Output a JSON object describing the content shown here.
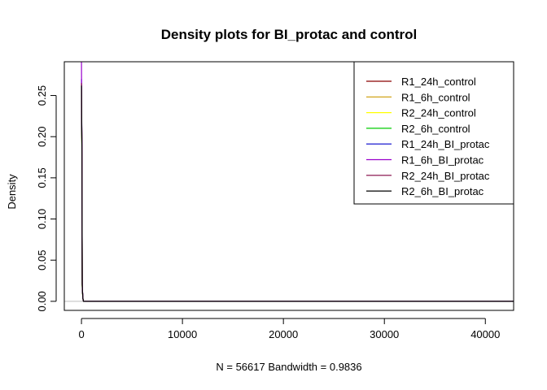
{
  "chart_data": {
    "type": "line",
    "title": "Density plots for BI_protac and control",
    "xlabel": "N = 56617   Bandwidth = 0.9836",
    "ylabel": "Density",
    "xlim": [
      -1700,
      42800
    ],
    "ylim": [
      -0.011,
      0.291
    ],
    "xticks": [
      0,
      10000,
      20000,
      30000,
      40000
    ],
    "yticks": [
      0.0,
      0.05,
      0.1,
      0.15,
      0.2,
      0.25
    ],
    "xtick_labels": [
      "0",
      "10000",
      "20000",
      "30000",
      "40000"
    ],
    "ytick_labels": [
      "0.00",
      "0.05",
      "0.10",
      "0.15",
      "0.20",
      "0.25"
    ],
    "zero_reference_line": true,
    "grid": false,
    "legend_position": "top-right",
    "series": [
      {
        "name": "R1_24h_control",
        "color": "#8B0000",
        "x": [
          0,
          25,
          50,
          75,
          100,
          150,
          200,
          42800
        ],
        "y": [
          0.26,
          0.215,
          0.18,
          0.02,
          0.012,
          0.003,
          0.0,
          0.0
        ]
      },
      {
        "name": "R1_6h_control",
        "color": "#CC9900",
        "x": [
          0,
          25,
          50,
          75,
          100,
          150,
          200,
          42800
        ],
        "y": [
          0.25,
          0.21,
          0.175,
          0.018,
          0.011,
          0.003,
          0.0,
          0.0
        ]
      },
      {
        "name": "R2_24h_control",
        "color": "#FFFF00",
        "x": [
          0,
          25,
          50,
          75,
          100,
          150,
          200,
          42800
        ],
        "y": [
          0.255,
          0.212,
          0.178,
          0.019,
          0.011,
          0.003,
          0.0,
          0.0
        ]
      },
      {
        "name": "R2_6h_control",
        "color": "#00CC00",
        "x": [
          0,
          25,
          50,
          75,
          100,
          150,
          200,
          42800
        ],
        "y": [
          0.25,
          0.208,
          0.176,
          0.018,
          0.011,
          0.003,
          0.0,
          0.0
        ]
      },
      {
        "name": "R1_24h_BI_protac",
        "color": "#0000CC",
        "x": [
          0,
          25,
          50,
          75,
          100,
          150,
          200,
          42800
        ],
        "y": [
          0.27,
          0.218,
          0.182,
          0.021,
          0.012,
          0.003,
          0.0,
          0.0
        ]
      },
      {
        "name": "R1_6h_BI_protac",
        "color": "#9900CC",
        "x": [
          0,
          25,
          50,
          75,
          100,
          150,
          200,
          42800
        ],
        "y": [
          0.291,
          0.22,
          0.185,
          0.022,
          0.013,
          0.003,
          0.0,
          0.0
        ]
      },
      {
        "name": "R2_24h_BI_protac",
        "color": "#800040",
        "x": [
          0,
          25,
          50,
          75,
          100,
          150,
          200,
          42800
        ],
        "y": [
          0.265,
          0.214,
          0.18,
          0.02,
          0.012,
          0.003,
          0.0,
          0.0
        ]
      },
      {
        "name": "R2_6h_BI_protac",
        "color": "#000000",
        "x": [
          0,
          25,
          50,
          75,
          100,
          150,
          200,
          42800
        ],
        "y": [
          0.262,
          0.213,
          0.179,
          0.02,
          0.012,
          0.003,
          0.0,
          0.0
        ]
      }
    ]
  }
}
